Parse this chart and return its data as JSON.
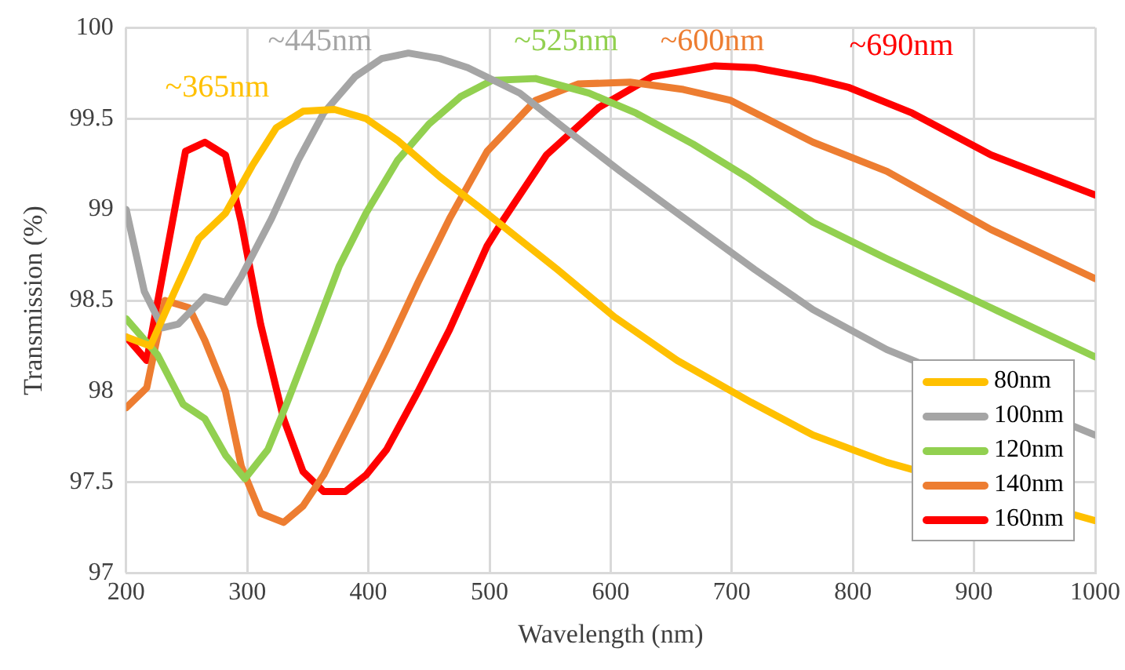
{
  "chart_data": {
    "type": "line",
    "xlabel": "Wavelength (nm)",
    "ylabel": "Transmission (%)",
    "xlim": [
      200,
      1000
    ],
    "xticks": [
      200,
      300,
      400,
      500,
      600,
      700,
      800,
      900,
      1000
    ],
    "ylim": [
      97,
      100
    ],
    "yticks": [
      97,
      97.5,
      98,
      98.5,
      99,
      99.5,
      100
    ],
    "grid": true,
    "legend": "bottom right",
    "marker": "none",
    "line_style": "solid",
    "annotations": [
      "~365nm",
      "~445nm",
      "~525nm",
      "~600nm",
      "~690nm"
    ],
    "series": [
      {
        "name": "80nm",
        "color": "#ffc000",
        "x": [
          200,
          220,
          240,
          260,
          282,
          304,
          324,
          346,
          372,
          398,
          424,
          459,
          490,
          556,
          603,
          655,
          716,
          767,
          828,
          1000
        ],
        "values": [
          98.3,
          98.25,
          98.55,
          98.84,
          98.98,
          99.24,
          99.45,
          99.54,
          99.55,
          99.5,
          99.38,
          99.18,
          99.02,
          98.67,
          98.41,
          98.17,
          97.94,
          97.76,
          97.61,
          97.29
        ]
      },
      {
        "name": "100nm",
        "color": "#a5a5a5",
        "x": [
          200,
          215,
          230,
          243,
          265,
          282,
          295,
          320,
          342,
          363,
          389,
          411,
          433,
          459,
          482,
          525,
          569,
          608,
          655,
          719,
          767,
          828,
          1000
        ],
        "values": [
          99.0,
          98.55,
          98.35,
          98.37,
          98.52,
          98.49,
          98.63,
          98.95,
          99.27,
          99.53,
          99.73,
          99.83,
          99.86,
          99.83,
          99.78,
          99.64,
          99.41,
          99.21,
          98.98,
          98.67,
          98.45,
          98.23,
          97.76
        ]
      },
      {
        "name": "120nm",
        "color": "#92d050",
        "x": [
          200,
          226,
          247,
          265,
          282,
          298,
          317,
          333,
          355,
          376,
          398,
          424,
          450,
          476,
          502,
          538,
          582,
          621,
          668,
          712,
          767,
          828,
          914,
          1000
        ],
        "values": [
          98.4,
          98.2,
          97.93,
          97.85,
          97.65,
          97.52,
          97.68,
          97.94,
          98.32,
          98.69,
          98.98,
          99.27,
          99.47,
          99.62,
          99.71,
          99.72,
          99.64,
          99.53,
          99.36,
          99.18,
          98.93,
          98.73,
          98.46,
          98.19
        ]
      },
      {
        "name": "140nm",
        "color": "#ed7d31",
        "x": [
          200,
          217,
          232,
          252,
          265,
          282,
          295,
          311,
          330,
          346,
          363,
          389,
          415,
          441,
          467,
          498,
          538,
          573,
          616,
          660,
          699,
          767,
          828,
          914,
          1000
        ],
        "values": [
          97.91,
          98.02,
          98.5,
          98.46,
          98.28,
          98.0,
          97.59,
          97.33,
          97.28,
          97.37,
          97.54,
          97.88,
          98.23,
          98.6,
          98.95,
          99.32,
          99.6,
          99.69,
          99.7,
          99.66,
          99.6,
          99.37,
          99.21,
          98.89,
          98.62
        ]
      },
      {
        "name": "160nm",
        "color": "#ff0000",
        "x": [
          200,
          217,
          249,
          265,
          282,
          295,
          311,
          330,
          346,
          363,
          381,
          398,
          415,
          441,
          467,
          498,
          512,
          547,
          590,
          634,
          686,
          719,
          767,
          797,
          849,
          914,
          1000
        ],
        "values": [
          98.3,
          98.17,
          99.32,
          99.37,
          99.3,
          98.93,
          98.37,
          97.85,
          97.56,
          97.45,
          97.45,
          97.54,
          97.68,
          98.0,
          98.34,
          98.8,
          98.95,
          99.3,
          99.56,
          99.73,
          99.79,
          99.78,
          99.72,
          99.67,
          99.53,
          99.3,
          99.08
        ]
      }
    ]
  }
}
